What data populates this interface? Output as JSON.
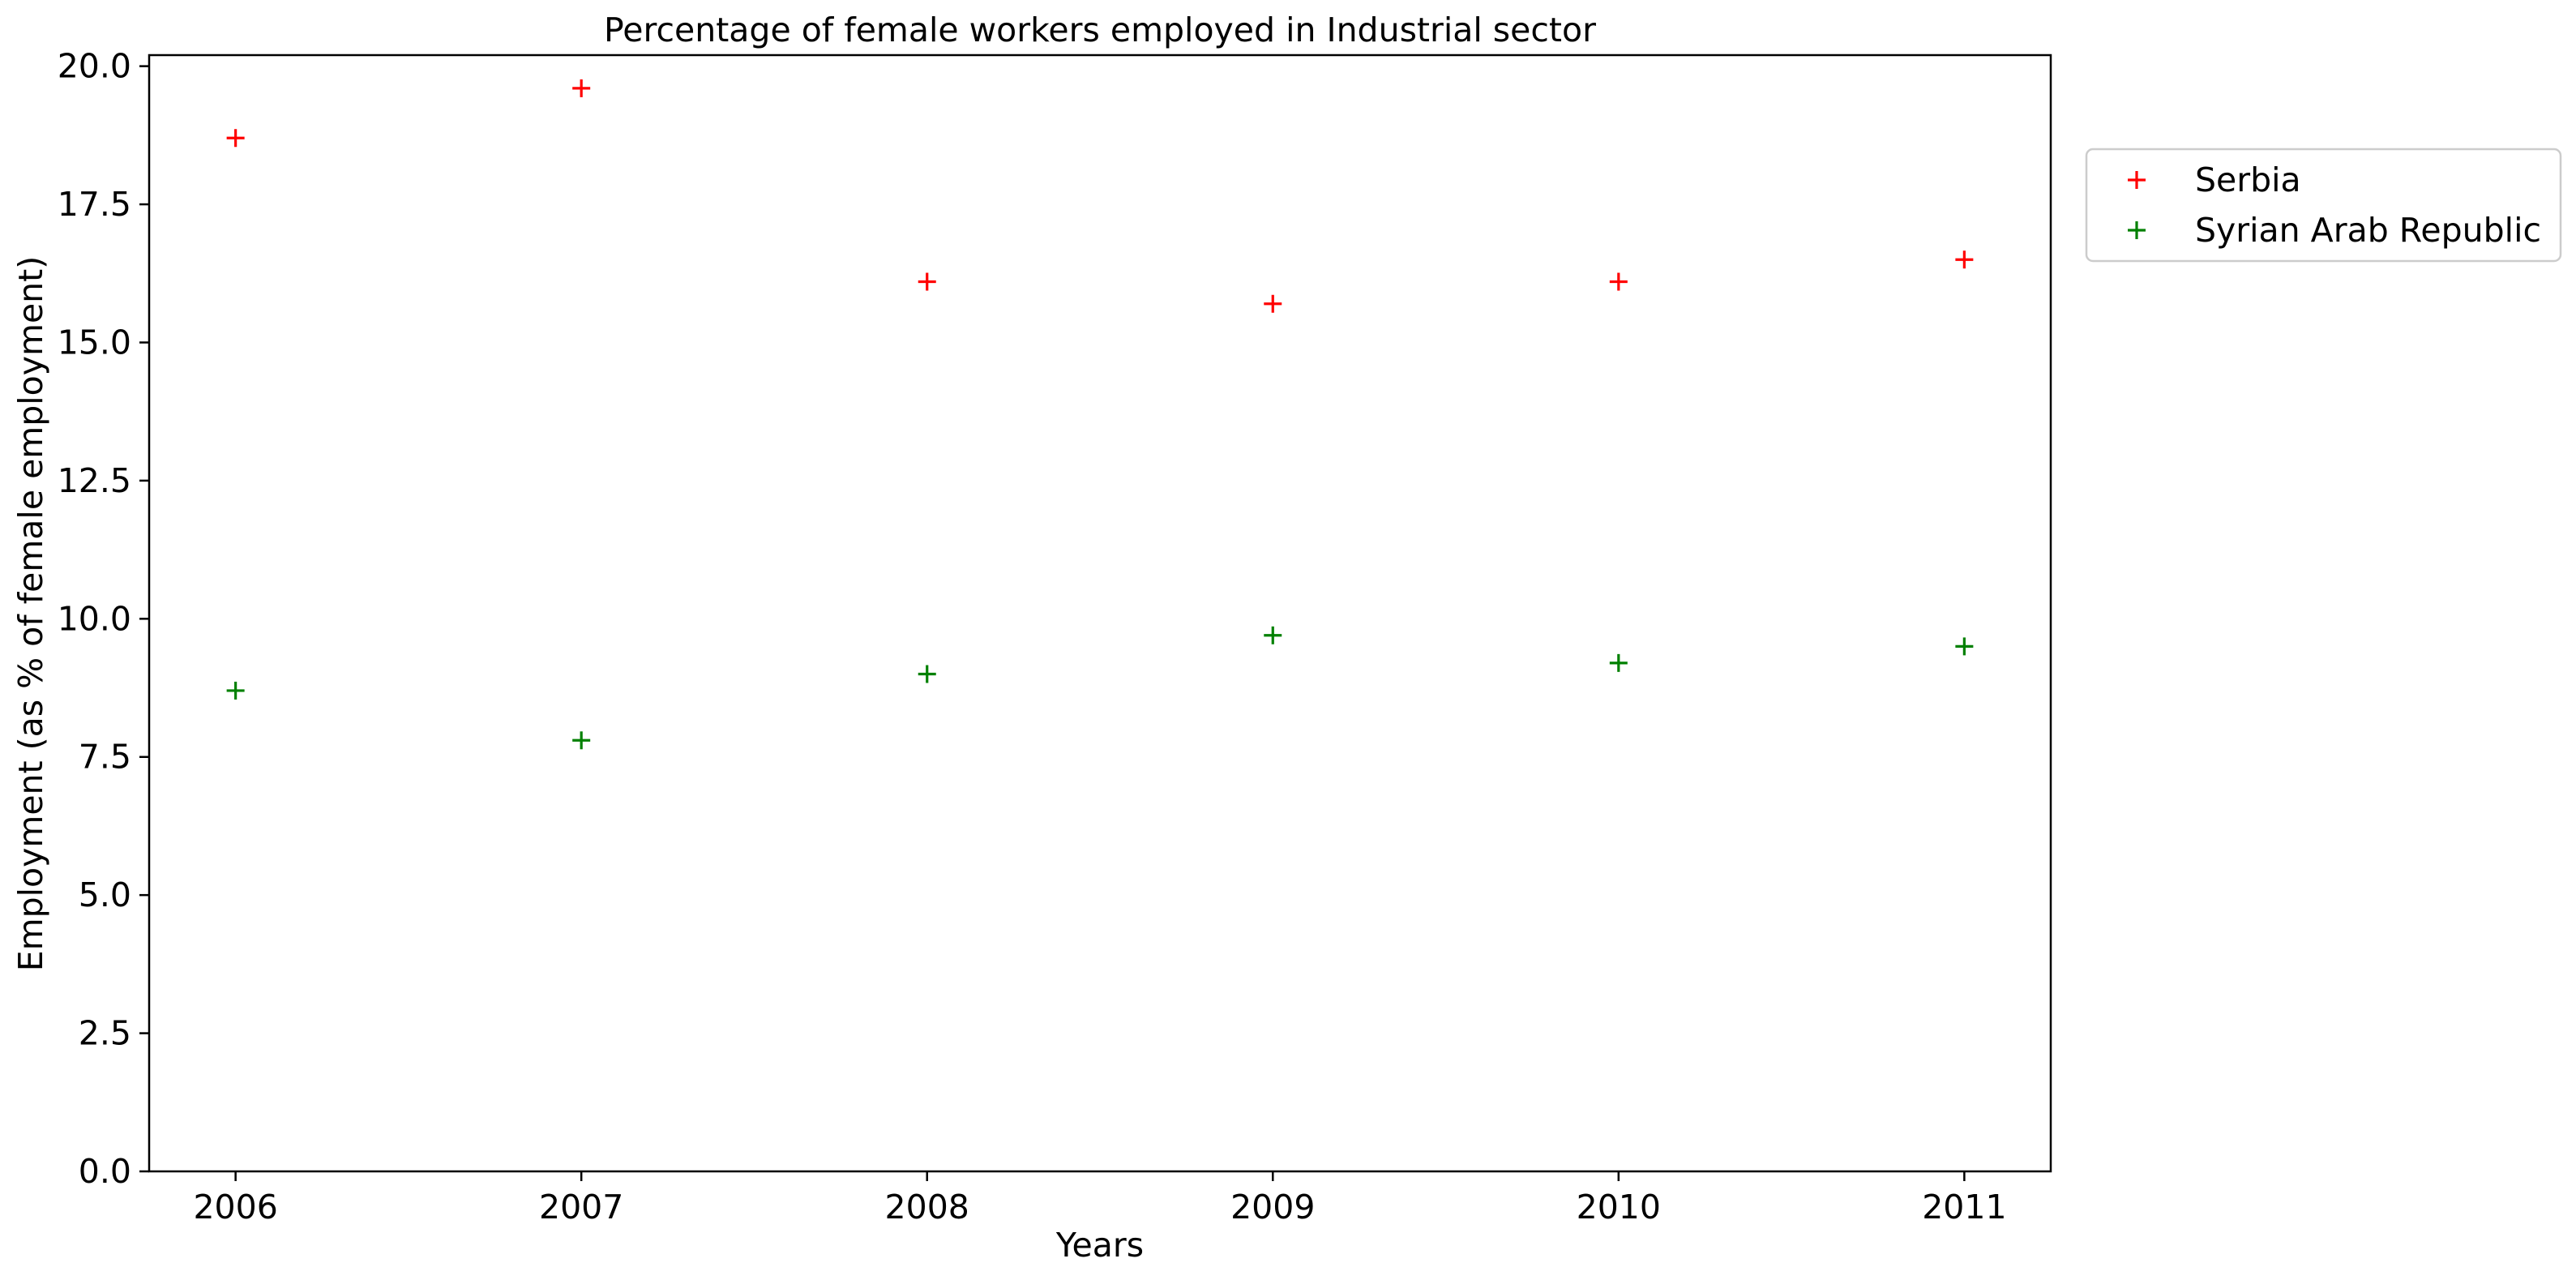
{
  "chart_data": {
    "type": "scatter",
    "title": "Percentage of female workers employed in Industrial sector",
    "xlabel": "Years",
    "ylabel": "Employment (as % of female employment)",
    "x": [
      "2006",
      "2007",
      "2008",
      "2009",
      "2010",
      "2011"
    ],
    "xlim": [
      2005.75,
      2011.25
    ],
    "ylim": [
      0,
      20.2
    ],
    "yticks": [
      "0.0",
      "2.5",
      "5.0",
      "7.5",
      "10.0",
      "12.5",
      "15.0",
      "17.5",
      "20.0"
    ],
    "grid": false,
    "legend_position": "outside right, top",
    "marker": "+",
    "series": [
      {
        "name": "Serbia",
        "color": "#ff0000",
        "values": [
          18.7,
          19.6,
          16.1,
          15.7,
          16.1,
          16.5
        ]
      },
      {
        "name": "Syrian Arab Republic",
        "color": "#008000",
        "values": [
          8.7,
          7.8,
          9.0,
          9.7,
          9.2,
          9.5
        ]
      }
    ]
  }
}
